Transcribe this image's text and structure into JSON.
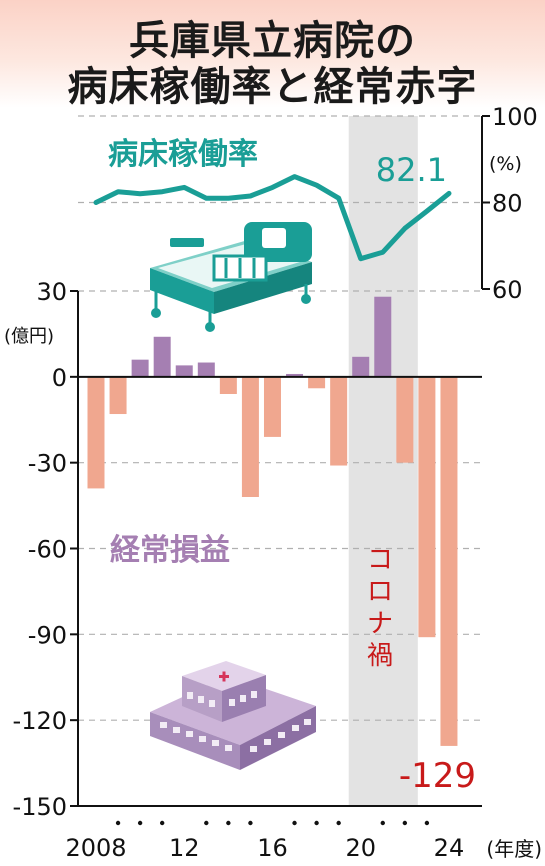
{
  "title": {
    "line1": "兵庫県立病院の",
    "line2": "病床稼働率と経常赤字"
  },
  "colors": {
    "occupancy_line": "#1a9e96",
    "profit_bar": "#a57fb2",
    "loss_bar": "#f0a78f",
    "covid_shade": "#e3e3e3",
    "covid_label": "#c81a1a",
    "axis": "#111111",
    "grid": "#b0b0b0"
  },
  "chart_data": [
    {
      "type": "line",
      "series_label": "病床稼働率",
      "unit_label": "(%)",
      "x": [
        2008,
        2009,
        2010,
        2011,
        2012,
        2013,
        2014,
        2015,
        2016,
        2017,
        2018,
        2019,
        2020,
        2021,
        2022,
        2023,
        2024
      ],
      "values": [
        80,
        82.5,
        82,
        82.5,
        83.5,
        81,
        81,
        81.5,
        83.5,
        86,
        84,
        81,
        67,
        68.5,
        74,
        78,
        82.1
      ],
      "ylim": [
        60,
        100
      ],
      "yticks": [
        "60",
        "80",
        "100"
      ],
      "end_label": "82.1"
    },
    {
      "type": "bar",
      "series_label": "経常損益",
      "unit_label": "(億円)",
      "x": [
        2008,
        2009,
        2010,
        2011,
        2012,
        2013,
        2014,
        2015,
        2016,
        2017,
        2018,
        2019,
        2020,
        2021,
        2022,
        2023,
        2024
      ],
      "values": [
        -39,
        -13,
        6,
        14,
        4,
        5,
        -6,
        -42,
        -21,
        1,
        -4,
        -31,
        7,
        28,
        -30,
        -91,
        -129
      ],
      "ylim": [
        -150,
        30
      ],
      "yticks": [
        "30",
        "0",
        "-30",
        "-60",
        "-90",
        "-120",
        "-150"
      ],
      "end_label": "-129"
    }
  ],
  "x_axis": {
    "tick_labels": [
      "2008",
      "12",
      "16",
      "20",
      "24"
    ],
    "tick_years": [
      2008,
      2012,
      2016,
      2020,
      2024
    ],
    "unit_label": "(年度)"
  },
  "covid": {
    "label": "コロナ禍",
    "start_year": 2020,
    "end_year": 2022
  }
}
